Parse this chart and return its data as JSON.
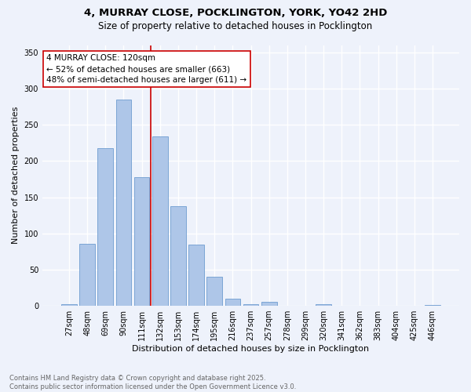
{
  "title_line1": "4, MURRAY CLOSE, POCKLINGTON, YORK, YO42 2HD",
  "title_line2": "Size of property relative to detached houses in Pocklington",
  "xlabel": "Distribution of detached houses by size in Pocklington",
  "ylabel": "Number of detached properties",
  "bar_labels": [
    "27sqm",
    "48sqm",
    "69sqm",
    "90sqm",
    "111sqm",
    "132sqm",
    "153sqm",
    "174sqm",
    "195sqm",
    "216sqm",
    "237sqm",
    "257sqm",
    "278sqm",
    "299sqm",
    "320sqm",
    "341sqm",
    "362sqm",
    "383sqm",
    "404sqm",
    "425sqm",
    "446sqm"
  ],
  "bar_values": [
    2,
    86,
    218,
    285,
    178,
    234,
    138,
    85,
    40,
    10,
    2,
    5,
    0,
    0,
    2,
    0,
    0,
    0,
    0,
    0,
    1
  ],
  "bar_color": "#aec6e8",
  "bar_edge_color": "#5b8fc9",
  "vline_x_index": 4,
  "vline_color": "#cc0000",
  "annotation_text": "4 MURRAY CLOSE: 120sqm\n← 52% of detached houses are smaller (663)\n48% of semi-detached houses are larger (611) →",
  "annotation_box_color": "#ffffff",
  "annotation_box_edge_color": "#cc0000",
  "annotation_fontsize": 7.5,
  "ylim": [
    0,
    360
  ],
  "yticks": [
    0,
    50,
    100,
    150,
    200,
    250,
    300,
    350
  ],
  "background_color": "#eef2fb",
  "grid_color": "#ffffff",
  "footer_text": "Contains HM Land Registry data © Crown copyright and database right 2025.\nContains public sector information licensed under the Open Government Licence v3.0.",
  "title_fontsize": 9.5,
  "subtitle_fontsize": 8.5,
  "xlabel_fontsize": 8,
  "ylabel_fontsize": 8,
  "tick_fontsize": 7,
  "footer_fontsize": 6
}
